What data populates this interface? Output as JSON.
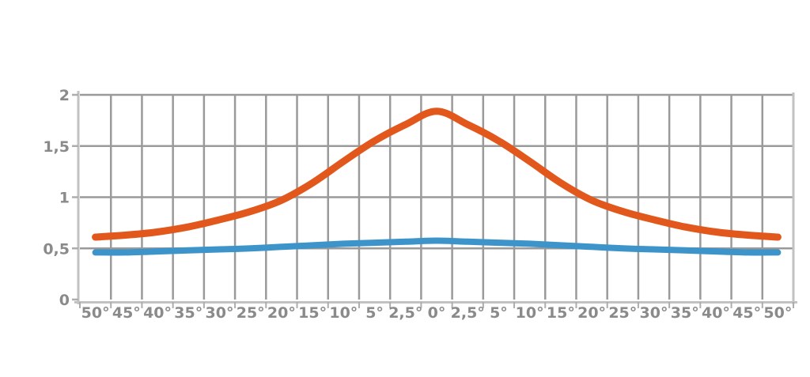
{
  "page": {
    "background": "#FFFFFF"
  },
  "chart_data": {
    "type": "line",
    "title": "",
    "xlabel": "",
    "ylabel": "",
    "legend": "none",
    "grid": "on",
    "categories": [
      "50°",
      "45°",
      "40°",
      "35°",
      "30°",
      "25°",
      "20°",
      "15°",
      "10°",
      "5°",
      "2,5°",
      "0°",
      "2,5°",
      "5°",
      "10°",
      "15°",
      "20°",
      "25°",
      "30°",
      "35°",
      "40°",
      "45°",
      "50°"
    ],
    "series": [
      {
        "name": "orange-curve",
        "color": "#E2571C",
        "stroke_width": 9,
        "values": [
          0.61,
          0.63,
          0.66,
          0.71,
          0.78,
          0.86,
          0.97,
          1.14,
          1.35,
          1.55,
          1.71,
          1.84,
          1.71,
          1.55,
          1.35,
          1.14,
          0.97,
          0.86,
          0.78,
          0.71,
          0.66,
          0.63,
          0.61
        ]
      },
      {
        "name": "blue-curve",
        "color": "#3D94CB",
        "stroke_width": 8,
        "values": [
          0.46,
          0.46,
          0.47,
          0.48,
          0.49,
          0.5,
          0.515,
          0.53,
          0.545,
          0.555,
          0.565,
          0.575,
          0.565,
          0.555,
          0.545,
          0.53,
          0.515,
          0.5,
          0.49,
          0.48,
          0.47,
          0.46,
          0.46
        ]
      }
    ],
    "y_tick_labels": [
      "0",
      "0,5",
      "1",
      "1,5",
      "2"
    ],
    "y_tick_values": [
      0,
      0.5,
      1,
      1.5,
      2
    ],
    "ylim": [
      0,
      2
    ],
    "colors": {
      "grid": "#9A9A9A",
      "axis": "#C2C2C2",
      "tick": "#ADADAD",
      "labels": "#8A8A8A",
      "background": "#FFFFFF"
    }
  }
}
